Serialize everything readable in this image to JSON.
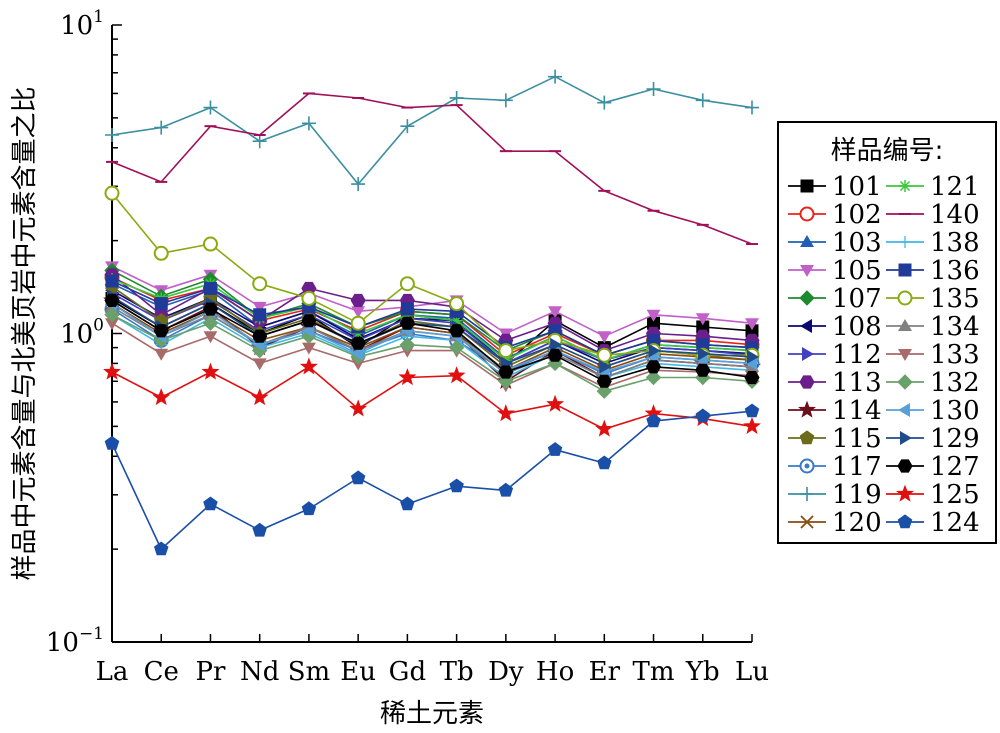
{
  "chart_data": {
    "type": "line",
    "xlabel": "稀土元素",
    "ylabel": "样品中元素含量与北美页岩中元素含量之比",
    "y_scale": "log",
    "ylim": [
      0.1,
      10
    ],
    "y_ticks": [
      {
        "value": 0.1,
        "base": "10",
        "exp": "−1"
      },
      {
        "value": 1,
        "base": "10",
        "exp": "0"
      },
      {
        "value": 10,
        "base": "10",
        "exp": "1"
      }
    ],
    "categories": [
      "La",
      "Ce",
      "Pr",
      "Nd",
      "Sm",
      "Eu",
      "Gd",
      "Tb",
      "Dy",
      "Ho",
      "Er",
      "Tm",
      "Yb",
      "Lu"
    ],
    "legend": {
      "title": "样品编号:",
      "placement": "right"
    },
    "series": [
      {
        "name": "101",
        "color": "#000000",
        "marker": "square",
        "values": [
          1.3,
          1.05,
          1.25,
          1.0,
          1.15,
          0.9,
          1.15,
          1.1,
          0.8,
          1.1,
          0.9,
          1.08,
          1.05,
          1.02
        ]
      },
      {
        "name": "102",
        "color": "#e8231c",
        "marker": "circle-open",
        "values": [
          1.52,
          1.28,
          1.4,
          1.1,
          1.2,
          1.02,
          1.18,
          1.15,
          0.85,
          1.0,
          0.85,
          0.95,
          0.95,
          0.92
        ]
      },
      {
        "name": "103",
        "color": "#1f5fb5",
        "marker": "triangle",
        "values": [
          1.45,
          1.22,
          1.38,
          1.05,
          1.18,
          0.98,
          1.15,
          1.12,
          0.83,
          0.98,
          0.82,
          0.92,
          0.9,
          0.88
        ]
      },
      {
        "name": "105",
        "color": "#c060c8",
        "marker": "triangle-down",
        "values": [
          1.65,
          1.38,
          1.55,
          1.22,
          1.35,
          1.18,
          1.22,
          1.28,
          1.0,
          1.18,
          0.98,
          1.15,
          1.12,
          1.08
        ]
      },
      {
        "name": "107",
        "color": "#1e8a2e",
        "marker": "diamond",
        "values": [
          1.6,
          1.32,
          1.5,
          1.12,
          1.25,
          1.05,
          1.18,
          1.15,
          0.88,
          1.02,
          0.85,
          0.95,
          0.92,
          0.9
        ]
      },
      {
        "name": "108",
        "color": "#0a0a6e",
        "marker": "triangle-left",
        "values": [
          1.38,
          1.12,
          1.3,
          1.05,
          1.18,
          0.96,
          1.12,
          1.1,
          0.8,
          0.95,
          0.8,
          0.9,
          0.88,
          0.86
        ]
      },
      {
        "name": "112",
        "color": "#4040c0",
        "marker": "triangle-right",
        "values": [
          1.35,
          1.1,
          1.28,
          1.02,
          1.15,
          0.95,
          1.12,
          1.08,
          0.8,
          0.95,
          0.82,
          0.9,
          0.88,
          0.85
        ]
      },
      {
        "name": "113",
        "color": "#6b1f8a",
        "marker": "hexagon",
        "values": [
          1.55,
          1.15,
          1.4,
          1.1,
          1.4,
          1.28,
          1.28,
          1.22,
          0.95,
          1.08,
          0.88,
          1.0,
          0.98,
          0.95
        ]
      },
      {
        "name": "114",
        "color": "#6b0f1a",
        "marker": "star",
        "values": [
          1.28,
          1.02,
          1.22,
          0.9,
          1.05,
          0.88,
          1.05,
          1.0,
          0.7,
          0.88,
          0.72,
          0.82,
          0.8,
          0.78
        ]
      },
      {
        "name": "115",
        "color": "#6b6b1a",
        "marker": "pentagon",
        "values": [
          1.42,
          1.1,
          1.3,
          1.0,
          1.12,
          0.92,
          1.1,
          1.05,
          0.78,
          0.92,
          0.78,
          0.88,
          0.85,
          0.82
        ]
      },
      {
        "name": "117",
        "color": "#3a78c8",
        "marker": "circle-dot",
        "values": [
          1.2,
          0.95,
          1.15,
          0.92,
          1.02,
          0.88,
          1.0,
          0.95,
          0.75,
          0.88,
          0.74,
          0.84,
          0.82,
          0.8
        ]
      },
      {
        "name": "119",
        "color": "#3a8fa0",
        "marker": "plus",
        "values": [
          4.4,
          4.65,
          5.4,
          4.2,
          4.8,
          3.05,
          4.7,
          5.8,
          5.7,
          6.8,
          5.6,
          6.2,
          5.7,
          5.4
        ]
      },
      {
        "name": "120",
        "color": "#8a4a10",
        "marker": "x",
        "values": [
          1.25,
          1.0,
          1.18,
          0.95,
          1.05,
          0.9,
          1.05,
          1.0,
          0.76,
          0.9,
          0.76,
          0.86,
          0.84,
          0.82
        ]
      },
      {
        "name": "121",
        "color": "#3cc83c",
        "marker": "asterisk",
        "values": [
          1.5,
          1.3,
          1.45,
          1.12,
          1.22,
          1.0,
          1.15,
          1.1,
          0.82,
          0.98,
          0.82,
          0.92,
          0.9,
          0.88
        ]
      },
      {
        "name": "140",
        "color": "#a0105a",
        "marker": "dash",
        "values": [
          3.6,
          3.1,
          4.7,
          4.4,
          6.0,
          5.8,
          5.4,
          5.5,
          3.9,
          3.9,
          2.9,
          2.5,
          2.25,
          1.95
        ]
      },
      {
        "name": "138",
        "color": "#40b8e8",
        "marker": "plus-thin",
        "values": [
          1.15,
          0.92,
          1.12,
          0.9,
          1.0,
          0.85,
          0.98,
          0.95,
          0.72,
          0.86,
          0.72,
          0.8,
          0.78,
          0.76
        ]
      },
      {
        "name": "136",
        "color": "#203a9a",
        "marker": "square",
        "values": [
          1.48,
          1.25,
          1.4,
          1.15,
          1.22,
          1.05,
          1.2,
          1.18,
          0.9,
          1.02,
          0.85,
          0.95,
          0.92,
          0.9
        ]
      },
      {
        "name": "135",
        "color": "#8aaa10",
        "marker": "circle-open",
        "values": [
          2.85,
          1.82,
          1.95,
          1.45,
          1.3,
          1.08,
          1.45,
          1.25,
          0.88,
          0.95,
          0.85,
          0.88,
          0.85,
          0.85
        ]
      },
      {
        "name": "134",
        "color": "#808080",
        "marker": "triangle",
        "values": [
          1.22,
          0.98,
          1.15,
          0.92,
          1.05,
          0.88,
          1.02,
          0.98,
          0.74,
          0.86,
          0.72,
          0.82,
          0.8,
          0.78
        ]
      },
      {
        "name": "133",
        "color": "#a86a6a",
        "marker": "triangle-down",
        "values": [
          1.08,
          0.86,
          0.98,
          0.8,
          0.9,
          0.8,
          0.88,
          0.88,
          0.68,
          0.8,
          0.67,
          0.76,
          0.75,
          0.73
        ]
      },
      {
        "name": "132",
        "color": "#6aa06a",
        "marker": "diamond",
        "values": [
          1.15,
          0.95,
          1.08,
          0.88,
          0.98,
          0.84,
          0.92,
          0.9,
          0.7,
          0.8,
          0.65,
          0.72,
          0.72,
          0.7
        ]
      },
      {
        "name": "130",
        "color": "#5aa0d8",
        "marker": "triangle-left",
        "values": [
          1.25,
          0.98,
          1.18,
          0.92,
          1.02,
          0.86,
          1.02,
          0.98,
          0.76,
          0.88,
          0.75,
          0.84,
          0.82,
          0.8
        ]
      },
      {
        "name": "129",
        "color": "#204a8a",
        "marker": "triangle-right",
        "values": [
          1.32,
          1.05,
          1.25,
          0.98,
          1.1,
          0.92,
          1.08,
          1.05,
          0.8,
          0.92,
          0.78,
          0.88,
          0.86,
          0.84
        ]
      },
      {
        "name": "127",
        "color": "#000000",
        "marker": "hexagon",
        "values": [
          1.28,
          1.02,
          1.2,
          0.98,
          1.1,
          0.93,
          1.08,
          1.02,
          0.75,
          0.85,
          0.7,
          0.78,
          0.76,
          0.72
        ]
      },
      {
        "name": "125",
        "color": "#e01010",
        "marker": "star",
        "values": [
          0.75,
          0.62,
          0.75,
          0.62,
          0.78,
          0.57,
          0.72,
          0.73,
          0.55,
          0.59,
          0.49,
          0.55,
          0.53,
          0.5
        ]
      },
      {
        "name": "124",
        "color": "#1a4fa8",
        "marker": "pentagon",
        "values": [
          0.44,
          0.2,
          0.28,
          0.23,
          0.27,
          0.34,
          0.28,
          0.32,
          0.31,
          0.42,
          0.38,
          0.52,
          0.54,
          0.56
        ]
      }
    ]
  }
}
